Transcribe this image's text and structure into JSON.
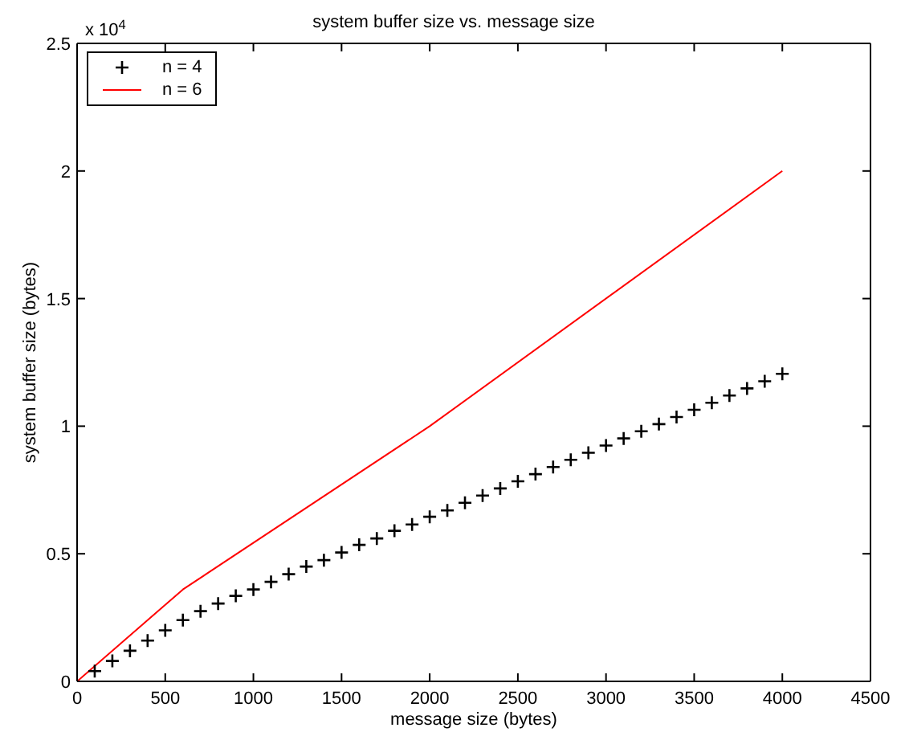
{
  "chart_data": {
    "type": "line",
    "title": "system buffer size vs. message size",
    "xlabel": "message size (bytes)",
    "ylabel": "system buffer size (bytes)",
    "xlim": [
      0,
      4500
    ],
    "xticks": [
      0,
      500,
      1000,
      1500,
      2000,
      2500,
      3000,
      3500,
      4000,
      4500
    ],
    "ylim": [
      0,
      2.5
    ],
    "yticks": [
      0,
      0.5,
      1,
      1.5,
      2,
      2.5
    ],
    "annotations": [
      "x 10$^{4}$"
    ],
    "legend": "top left",
    "series": [
      {
        "name": "n = 4",
        "type": "scatter",
        "marker": "cross",
        "color": "#000000",
        "x": [
          100,
          200,
          300,
          400,
          500,
          600,
          700,
          800,
          900,
          1000,
          1100,
          1200,
          1300,
          1400,
          1500,
          1600,
          1700,
          1800,
          1900,
          2000,
          2100,
          2200,
          2300,
          2400,
          2500,
          2600,
          2700,
          2800,
          2900,
          3000,
          3100,
          3200,
          3300,
          3400,
          3500,
          3600,
          3700,
          3800,
          3900,
          4000
        ],
        "values": [
          0.04,
          0.08,
          0.12,
          0.16,
          0.2,
          0.24,
          0.275,
          0.305,
          0.335,
          0.36,
          0.39,
          0.42,
          0.45,
          0.475,
          0.505,
          0.535,
          0.56,
          0.59,
          0.615,
          0.645,
          0.67,
          0.7,
          0.728,
          0.756,
          0.784,
          0.812,
          0.84,
          0.868,
          0.896,
          0.924,
          0.952,
          0.98,
          1.008,
          1.036,
          1.064,
          1.092,
          1.12,
          1.148,
          1.176,
          1.205
        ]
      },
      {
        "name": "n = 6",
        "marker": "none",
        "color": "#ff0000",
        "x": [
          0,
          600,
          2000,
          4000
        ],
        "values": [
          0,
          0.36,
          1,
          2
        ]
      }
    ]
  }
}
